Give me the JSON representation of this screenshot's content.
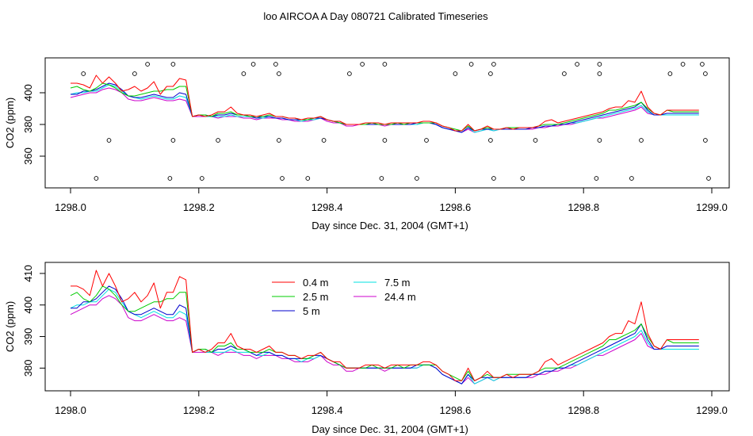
{
  "figure": {
    "title": "loo AIRCOA A  Day 080721  Calibrated Timeseries"
  },
  "chart_data": [
    {
      "type": "line",
      "ylabel": "CO2 (ppm)",
      "xlabel": "Day since Dec. 31, 2004 (GMT+1)",
      "xlim": [
        1298.0,
        1299.0
      ],
      "ylim": [
        340,
        422
      ],
      "xticks": [
        1298.0,
        1298.2,
        1298.4,
        1298.6,
        1298.8,
        1299.0
      ],
      "xtick_labels": [
        "1298.0",
        "1298.2",
        "1298.4",
        "1298.6",
        "1298.8",
        "1299.0"
      ],
      "yticks": [
        360,
        380,
        400
      ],
      "ytick_labels": [
        "360",
        "380",
        "400"
      ],
      "colors": [
        "#ff0000",
        "#00cc00",
        "#0000cc",
        "#00e0e0",
        "#cc00cc"
      ],
      "x": [
        1298.0,
        1298.01,
        1298.02,
        1298.03,
        1298.04,
        1298.05,
        1298.06,
        1298.07,
        1298.08,
        1298.09,
        1298.1,
        1298.11,
        1298.12,
        1298.13,
        1298.14,
        1298.15,
        1298.16,
        1298.17,
        1298.18,
        1298.19,
        1298.2,
        1298.21,
        1298.22,
        1298.23,
        1298.24,
        1298.25,
        1298.26,
        1298.27,
        1298.28,
        1298.29,
        1298.3,
        1298.31,
        1298.32,
        1298.33,
        1298.34,
        1298.35,
        1298.36,
        1298.37,
        1298.38,
        1298.39,
        1298.4,
        1298.41,
        1298.42,
        1298.43,
        1298.44,
        1298.45,
        1298.46,
        1298.47,
        1298.48,
        1298.49,
        1298.5,
        1298.51,
        1298.52,
        1298.53,
        1298.54,
        1298.55,
        1298.56,
        1298.57,
        1298.58,
        1298.59,
        1298.6,
        1298.61,
        1298.62,
        1298.63,
        1298.64,
        1298.65,
        1298.66,
        1298.67,
        1298.68,
        1298.69,
        1298.7,
        1298.71,
        1298.72,
        1298.73,
        1298.74,
        1298.75,
        1298.76,
        1298.77,
        1298.78,
        1298.79,
        1298.8,
        1298.81,
        1298.82,
        1298.83,
        1298.84,
        1298.85,
        1298.86,
        1298.87,
        1298.88,
        1298.89,
        1298.9,
        1298.91,
        1298.92,
        1298.93,
        1298.94,
        1298.95,
        1298.96,
        1298.97,
        1298.98
      ],
      "series": [
        {
          "values": [
            406,
            406,
            405,
            403,
            411,
            406,
            410,
            406,
            401,
            402,
            404,
            401,
            403,
            407,
            399,
            404,
            404,
            409,
            408,
            385,
            386,
            385,
            386,
            388,
            388,
            391,
            387,
            386,
            386,
            385,
            386,
            387,
            385,
            385,
            384,
            384,
            383,
            384,
            384,
            385,
            383,
            382,
            382,
            380,
            380,
            380,
            381,
            381,
            381,
            380,
            381,
            381,
            381,
            381,
            381,
            382,
            382,
            381,
            379,
            378,
            376,
            376,
            380,
            376,
            377,
            379,
            377,
            377,
            378,
            377,
            378,
            378,
            378,
            379,
            382,
            383,
            381,
            382,
            383,
            384,
            385,
            386,
            387,
            388,
            390,
            391,
            391,
            395,
            394,
            401,
            391,
            387,
            386,
            389,
            389,
            389,
            389,
            389,
            389
          ]
        },
        {
          "values": [
            403,
            404,
            402,
            401,
            403,
            406,
            405,
            403,
            400,
            398,
            398,
            399,
            400,
            401,
            401,
            402,
            402,
            404,
            404,
            385,
            386,
            386,
            385,
            387,
            387,
            388,
            386,
            386,
            385,
            385,
            385,
            386,
            385,
            385,
            384,
            384,
            383,
            383,
            384,
            385,
            383,
            382,
            381,
            380,
            380,
            380,
            380,
            381,
            380,
            380,
            380,
            381,
            380,
            381,
            381,
            381,
            381,
            381,
            379,
            378,
            377,
            376,
            379,
            376,
            377,
            378,
            377,
            377,
            378,
            378,
            378,
            378,
            378,
            379,
            380,
            380,
            380,
            381,
            382,
            383,
            384,
            385,
            386,
            387,
            389,
            389,
            390,
            391,
            392,
            394,
            390,
            387,
            386,
            389,
            388,
            388,
            388,
            388,
            388
          ]
        },
        {
          "values": [
            399,
            399,
            401,
            401,
            402,
            404,
            406,
            405,
            402,
            398,
            397,
            397,
            398,
            399,
            398,
            397,
            397,
            400,
            399,
            385,
            386,
            386,
            385,
            386,
            386,
            387,
            386,
            386,
            385,
            384,
            385,
            385,
            384,
            384,
            383,
            383,
            383,
            383,
            384,
            384,
            383,
            382,
            381,
            380,
            380,
            380,
            380,
            380,
            380,
            380,
            380,
            380,
            380,
            380,
            381,
            381,
            381,
            380,
            378,
            377,
            376,
            375,
            378,
            376,
            377,
            377,
            377,
            377,
            377,
            377,
            377,
            377,
            378,
            378,
            379,
            379,
            380,
            380,
            381,
            382,
            383,
            384,
            385,
            386,
            387,
            388,
            389,
            390,
            391,
            394,
            389,
            386,
            386,
            387,
            387,
            387,
            387,
            387,
            387
          ]
        },
        {
          "values": [
            399,
            400,
            400,
            401,
            401,
            403,
            405,
            404,
            401,
            398,
            397,
            396,
            397,
            398,
            397,
            396,
            396,
            398,
            397,
            385,
            386,
            385,
            385,
            385,
            385,
            386,
            385,
            385,
            385,
            384,
            384,
            385,
            384,
            384,
            383,
            383,
            382,
            383,
            383,
            384,
            383,
            382,
            381,
            380,
            380,
            380,
            380,
            380,
            380,
            380,
            380,
            380,
            380,
            380,
            380,
            381,
            381,
            380,
            378,
            377,
            376,
            375,
            378,
            375,
            376,
            377,
            376,
            377,
            377,
            377,
            377,
            377,
            378,
            378,
            379,
            379,
            380,
            380,
            381,
            381,
            382,
            383,
            384,
            385,
            386,
            387,
            388,
            389,
            390,
            392,
            388,
            386,
            386,
            386,
            386,
            386,
            386,
            386,
            386
          ]
        },
        {
          "values": [
            397,
            398,
            399,
            400,
            400,
            402,
            403,
            402,
            400,
            396,
            395,
            395,
            396,
            397,
            396,
            395,
            395,
            396,
            395,
            385,
            385,
            385,
            385,
            384,
            385,
            385,
            385,
            384,
            384,
            383,
            384,
            384,
            384,
            383,
            383,
            382,
            382,
            382,
            383,
            384,
            382,
            381,
            381,
            379,
            379,
            380,
            380,
            380,
            380,
            379,
            380,
            380,
            380,
            380,
            380,
            381,
            381,
            380,
            378,
            377,
            376,
            375,
            377,
            375,
            376,
            377,
            376,
            377,
            377,
            377,
            377,
            377,
            377,
            378,
            378,
            379,
            379,
            380,
            380,
            381,
            382,
            383,
            384,
            384,
            385,
            386,
            387,
            388,
            389,
            391,
            387,
            386,
            386,
            386,
            386,
            386,
            386,
            386,
            386
          ]
        }
      ],
      "scatter_x": [
        1298.02,
        1298.04,
        1298.06,
        1298.1,
        1298.12,
        1298.155,
        1298.16,
        1298.16,
        1298.205,
        1298.23,
        1298.27,
        1298.285,
        1298.32,
        1298.325,
        1298.325,
        1298.33,
        1298.37,
        1298.395,
        1298.435,
        1298.455,
        1298.485,
        1298.49,
        1298.49,
        1298.54,
        1298.555,
        1298.6,
        1298.625,
        1298.655,
        1298.655,
        1298.66,
        1298.66,
        1298.705,
        1298.725,
        1298.77,
        1298.79,
        1298.82,
        1298.825,
        1298.825,
        1298.825,
        1298.875,
        1298.89,
        1298.935,
        1298.955,
        1298.985,
        1298.99,
        1298.99,
        1298.995
      ],
      "scatter_y": [
        412,
        346,
        370,
        412,
        418,
        346,
        370,
        418,
        346,
        370,
        412,
        418,
        418,
        412,
        370,
        346,
        346,
        370,
        412,
        418,
        346,
        370,
        418,
        346,
        370,
        412,
        418,
        412,
        370,
        418,
        346,
        346,
        370,
        412,
        418,
        346,
        412,
        370,
        418,
        346,
        370,
        412,
        418,
        418,
        412,
        370,
        346
      ]
    },
    {
      "type": "line",
      "ylabel": "CO2 (ppm)",
      "xlabel": "Day since Dec. 31, 2004 (GMT+1)",
      "xlim": [
        1298.0,
        1299.0
      ],
      "ylim": [
        372.8,
        413.5
      ],
      "xticks": [
        1298.0,
        1298.2,
        1298.4,
        1298.6,
        1298.8,
        1299.0
      ],
      "xtick_labels": [
        "1298.0",
        "1298.2",
        "1298.4",
        "1298.6",
        "1298.8",
        "1299.0"
      ],
      "yticks": [
        380,
        390,
        400,
        410
      ],
      "ytick_labels": [
        "380",
        "390",
        "400",
        "410"
      ],
      "legend": [
        "0.4 m",
        "2.5 m",
        "5 m",
        "7.5 m",
        "24.4 m"
      ],
      "colors": [
        "#ff0000",
        "#00cc00",
        "#0000cc",
        "#00e0e0",
        "#cc00cc"
      ]
    }
  ]
}
